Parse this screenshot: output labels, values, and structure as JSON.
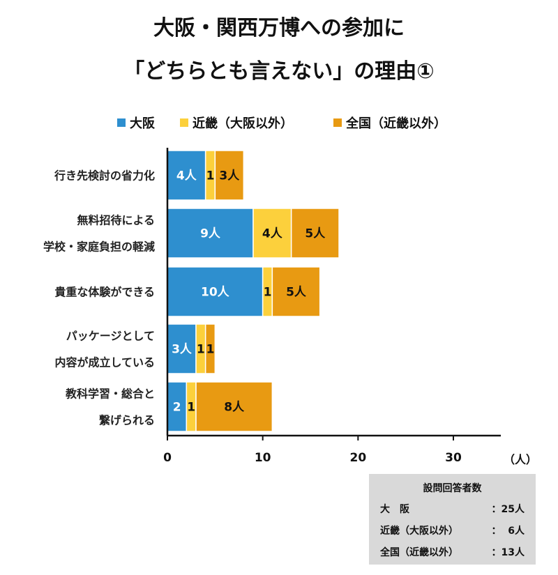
{
  "title_line1": "大阪・関西万博への参加に",
  "title_line2": "「どちらとも言えない」の理由①",
  "chart_data": {
    "type": "bar",
    "orientation": "horizontal",
    "stacked": true,
    "title": "大阪・関西万博への参加に「どちらとも言えない」の理由①",
    "categories": [
      [
        "行き先検討の省力化"
      ],
      [
        "無料招待による",
        "学校・家庭負担の軽減"
      ],
      [
        "貴重な体験ができる"
      ],
      [
        "パッケージとして",
        "内容が成立している"
      ],
      [
        "教科学習・総合と",
        "繋げられる"
      ]
    ],
    "series": [
      {
        "name": "大阪",
        "color": "#2e8fcf",
        "label_color": "#ffffff",
        "values": [
          4,
          9,
          10,
          3,
          2
        ],
        "labels": [
          "4人",
          "9人",
          "10人",
          "3人",
          "2"
        ]
      },
      {
        "name": "近畿（大阪以外）",
        "color": "#fcd03c",
        "label_color": "#111111",
        "values": [
          1,
          4,
          1,
          1,
          1
        ],
        "labels": [
          "1",
          "4人",
          "1",
          "1",
          "1"
        ]
      },
      {
        "name": "全国（近畿以外）",
        "color": "#e89a12",
        "label_color": "#111111",
        "values": [
          3,
          5,
          5,
          1,
          8
        ],
        "labels": [
          "3人",
          "5人",
          "5人",
          "1",
          "8人"
        ]
      }
    ],
    "xlim": [
      0,
      35
    ],
    "xticks": [
      0,
      10,
      20,
      30
    ],
    "xunit": "（人）",
    "grid": false,
    "legend_position": "top"
  },
  "note": {
    "title": "設問回答者数",
    "rows": [
      {
        "name": "大　阪",
        "value": "：25人"
      },
      {
        "name": "近畿（大阪以外）",
        "value": "：  6人"
      },
      {
        "name": "全国（近畿以外）",
        "value": "：13人"
      }
    ]
  }
}
